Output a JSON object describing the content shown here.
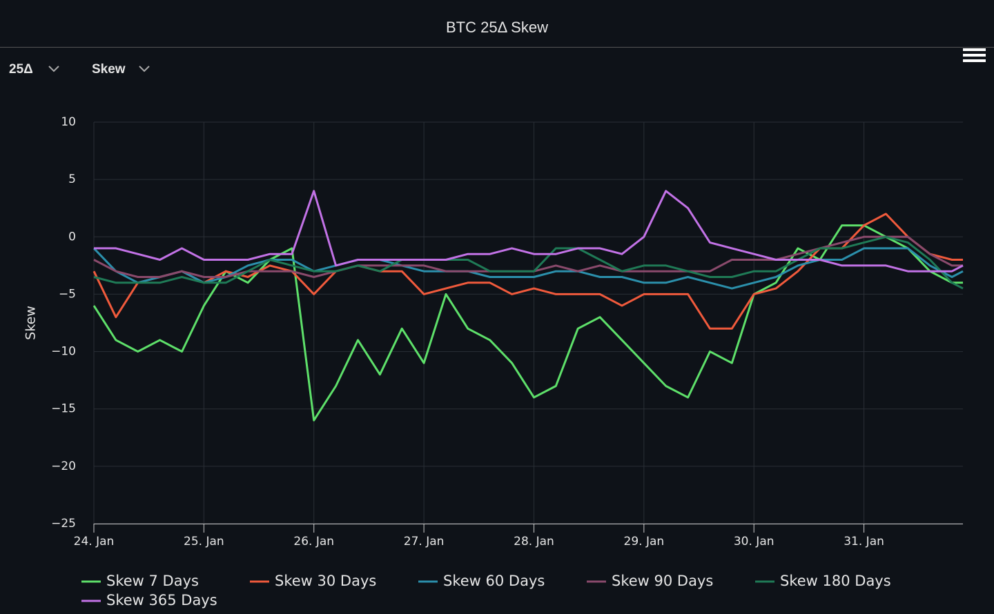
{
  "controls": [
    "25Δ",
    "Skew"
  ],
  "chart_data": {
    "type": "line",
    "title": "BTC 25Δ Skew",
    "y_label": "Skew",
    "x": [
      24,
      24.2,
      24.4,
      24.6,
      24.8,
      25,
      25.2,
      25.4,
      25.6,
      25.8,
      26,
      26.2,
      26.4,
      26.6,
      26.8,
      27,
      27.2,
      27.4,
      27.6,
      27.8,
      28,
      28.2,
      28.4,
      28.6,
      28.8,
      29,
      29.2,
      29.4,
      29.6,
      29.8,
      30,
      30.2,
      30.4,
      30.6,
      30.8,
      31,
      31.2,
      31.4,
      31.6,
      31.8,
      31.9
    ],
    "xlim": [
      24,
      31.9
    ],
    "xticks": [
      {
        "value": 24,
        "label": "24. Jan"
      },
      {
        "value": 25,
        "label": "25. Jan"
      },
      {
        "value": 26,
        "label": "26. Jan"
      },
      {
        "value": 27,
        "label": "27. Jan"
      },
      {
        "value": 28,
        "label": "28. Jan"
      },
      {
        "value": 29,
        "label": "29. Jan"
      },
      {
        "value": 30,
        "label": "30. Jan"
      },
      {
        "value": 31,
        "label": "31. Jan"
      }
    ],
    "ylim": [
      -25,
      10
    ],
    "yticks": [
      10,
      5,
      0,
      {
        "value": -5,
        "label": "−5"
      },
      {
        "value": -10,
        "label": "−10"
      },
      {
        "value": -15,
        "label": "−15"
      },
      {
        "value": -20,
        "label": "−20"
      },
      {
        "value": -25,
        "label": "−25"
      }
    ],
    "grid": true,
    "legend": "bottom",
    "series": [
      {
        "name": "Skew 7 Days",
        "color": "#5ee06a",
        "values": [
          -6,
          -9,
          -10,
          -9,
          -10,
          -6,
          -3,
          -4,
          -2,
          -1,
          -16,
          -13,
          -9,
          -12,
          -8,
          -11,
          -5,
          -8,
          -9,
          -11,
          -14,
          -13,
          -8,
          -7,
          -9,
          -11,
          -13,
          -14,
          -10,
          -11,
          -5,
          -4,
          -1,
          -2,
          1,
          1,
          0,
          -1,
          -3,
          -4,
          -4
        ]
      },
      {
        "name": "Skew 30 Days",
        "color": "#f05a3c",
        "values": [
          -3,
          -7,
          -4,
          -3.5,
          -3,
          -4,
          -3,
          -3.5,
          -2.5,
          -3,
          -5,
          -3,
          -2.5,
          -3,
          -3,
          -5,
          -4.5,
          -4,
          -4,
          -5,
          -4.5,
          -5,
          -5,
          -5,
          -6,
          -5,
          -5,
          -5,
          -8,
          -8,
          -5,
          -4.5,
          -3,
          -1,
          -1,
          1,
          2,
          0,
          -1.5,
          -2,
          -2
        ]
      },
      {
        "name": "Skew 60 Days",
        "color": "#2b8fab",
        "values": [
          -1,
          -3,
          -4,
          -3.5,
          -3,
          -4,
          -3.5,
          -2.5,
          -2,
          -2,
          -3,
          -2.5,
          -2,
          -2,
          -2.5,
          -3,
          -3,
          -3,
          -3.5,
          -3.5,
          -3.5,
          -3,
          -3,
          -3.5,
          -3.5,
          -4,
          -4,
          -3.5,
          -4,
          -4.5,
          -4,
          -3.5,
          -2.5,
          -2,
          -2,
          -1,
          -1,
          -1,
          -2.5,
          -3.5,
          -3
        ]
      },
      {
        "name": "Skew 90 Days",
        "color": "#8a4a6c",
        "values": [
          -2,
          -3,
          -3.5,
          -3.5,
          -3,
          -3.5,
          -3.5,
          -3,
          -3,
          -3,
          -3.5,
          -3,
          -2.5,
          -2.5,
          -2.5,
          -2.5,
          -3,
          -3,
          -3,
          -3,
          -3,
          -2.5,
          -3,
          -2.5,
          -3,
          -3,
          -3,
          -3,
          -3,
          -2,
          -2,
          -2,
          -1.5,
          -1,
          -0.5,
          0,
          0,
          0,
          -1.5,
          -2.5,
          -2.5
        ]
      },
      {
        "name": "Skew 180 Days",
        "color": "#1f7a56",
        "values": [
          -3.5,
          -4,
          -4,
          -4,
          -3.5,
          -4,
          -4,
          -3,
          -2,
          -2.5,
          -3,
          -3,
          -2.5,
          -3,
          -2,
          -2,
          -2,
          -2,
          -3,
          -3,
          -3,
          -1,
          -1,
          -2,
          -3,
          -2.5,
          -2.5,
          -3,
          -3.5,
          -3.5,
          -3,
          -3,
          -2,
          -1,
          -1,
          -0.5,
          0,
          -0.5,
          -2,
          -4,
          -4.5
        ]
      },
      {
        "name": "Skew 365 Days",
        "color": "#c272e6",
        "values": [
          -1,
          -1,
          -1.5,
          -2,
          -1,
          -2,
          -2,
          -2,
          -1.5,
          -1.5,
          4,
          -2.5,
          -2,
          -2,
          -2,
          -2,
          -2,
          -1.5,
          -1.5,
          -1,
          -1.5,
          -1.5,
          -1,
          -1,
          -1.5,
          0,
          4,
          2.5,
          -0.5,
          -1,
          -1.5,
          -2,
          -2,
          -2,
          -2.5,
          -2.5,
          -2.5,
          -3,
          -3,
          -3,
          -2.5
        ]
      }
    ]
  }
}
